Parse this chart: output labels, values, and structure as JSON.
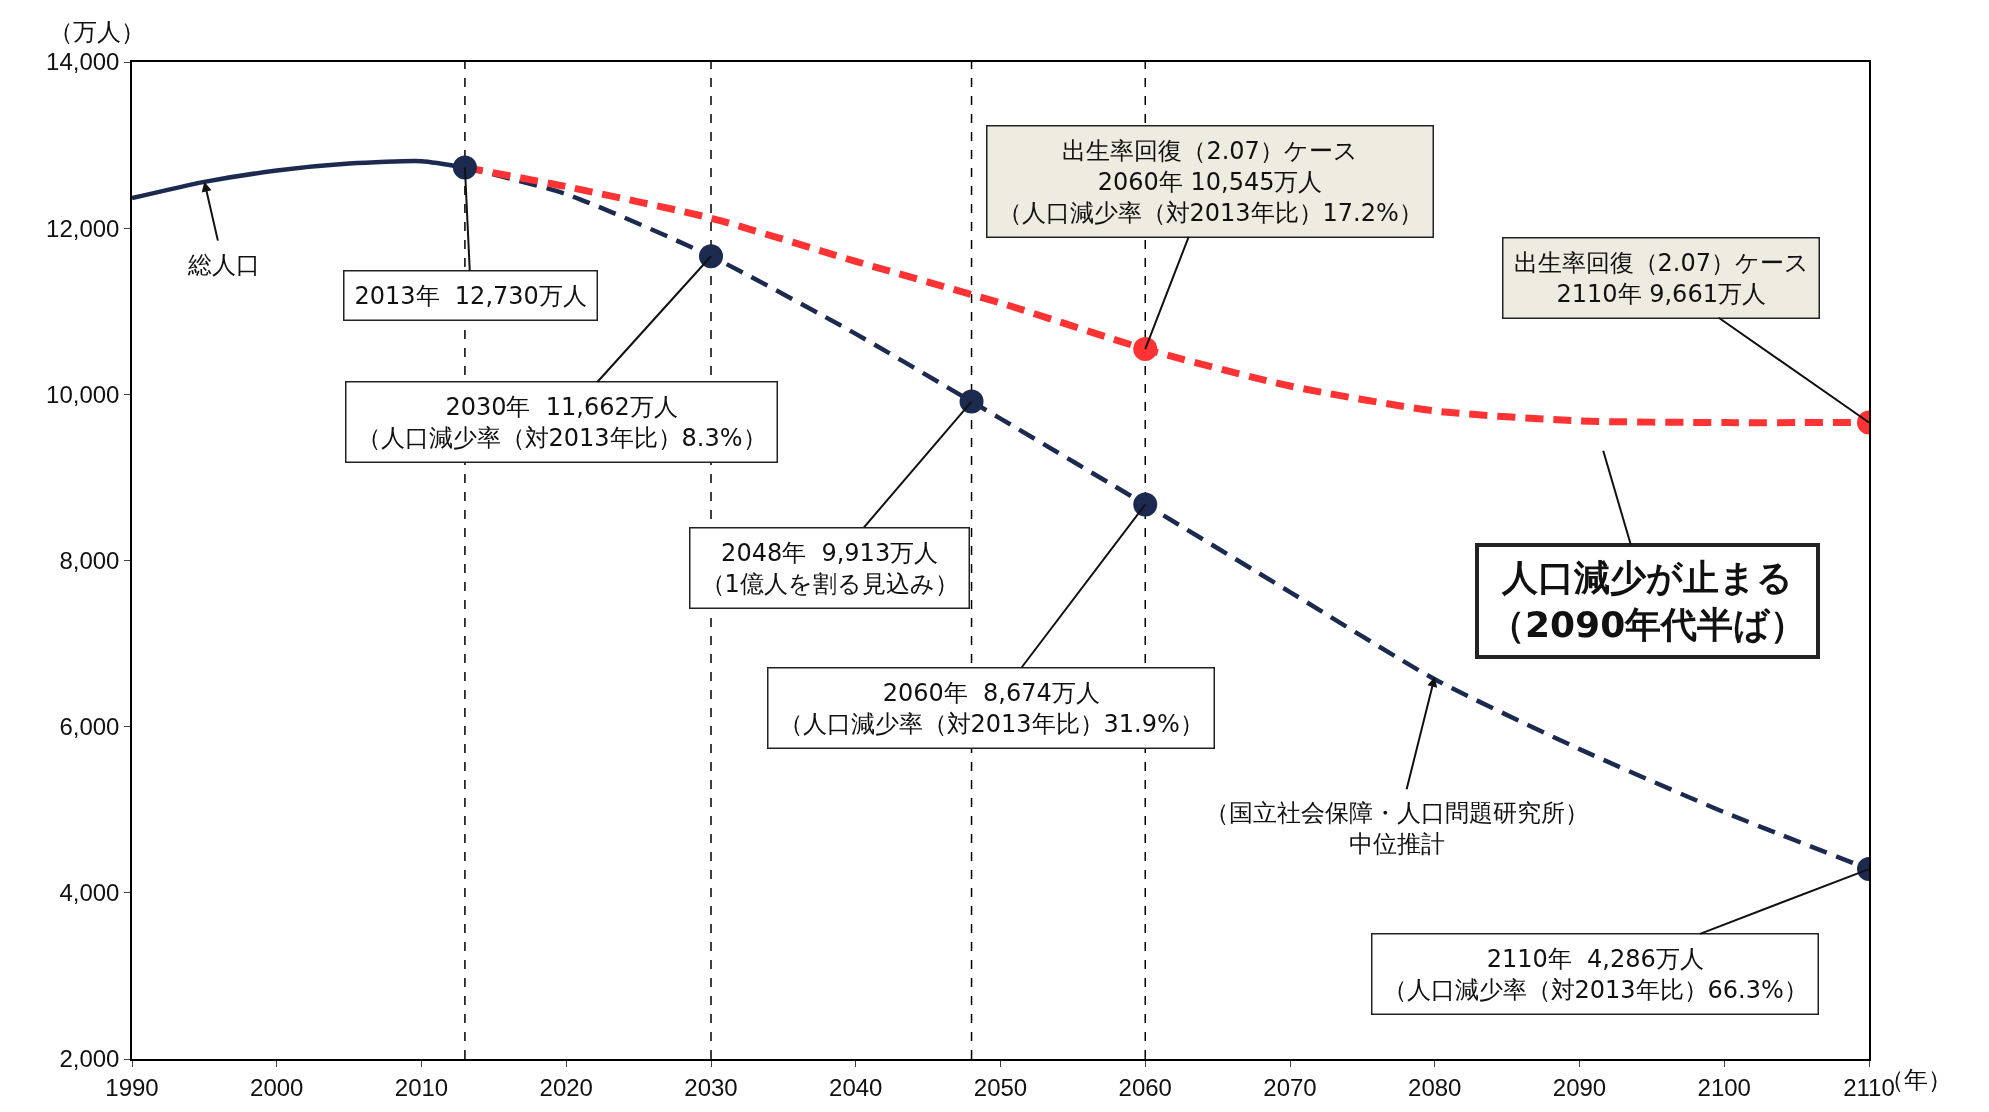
{
  "chart_data": {
    "type": "line",
    "xlabel": "（年）",
    "ylabel": "（万人）",
    "xlim": [
      1990,
      2110
    ],
    "xticks": [
      1990,
      2000,
      2010,
      2020,
      2030,
      2040,
      2050,
      2060,
      2070,
      2080,
      2090,
      2100,
      2110
    ],
    "ylim": [
      2000,
      14000
    ],
    "yticks": [
      {
        "value": 2000,
        "label": "2,000"
      },
      {
        "value": 4000,
        "label": "4,000"
      },
      {
        "value": 6000,
        "label": "6,000"
      },
      {
        "value": 8000,
        "label": "8,000"
      },
      {
        "value": 10000,
        "label": "10,000"
      },
      {
        "value": 12000,
        "label": "12,000"
      },
      {
        "value": 14000,
        "label": "14,000"
      }
    ],
    "grid": false,
    "ref_lines": [
      {
        "axis": "x",
        "value": 2013,
        "color": "#000000",
        "line_style": "dashed"
      },
      {
        "axis": "x",
        "value": 2030,
        "color": "#000000",
        "line_style": "dashed"
      },
      {
        "axis": "x",
        "value": 2048,
        "color": "#000000",
        "line_style": "dashed"
      },
      {
        "axis": "x",
        "value": 2060,
        "color": "#000000",
        "line_style": "dashed"
      }
    ],
    "series": [
      {
        "line_style": "solid",
        "color": "#1c2a4f",
        "x": [
          1990,
          1995,
          2000,
          2005,
          2010,
          2013
        ],
        "values": [
          12361,
          12557,
          12693,
          12777,
          12806,
          12730
        ]
      },
      {
        "line_style": "dashed",
        "color": "#1c2a4f",
        "x": [
          2013,
          2020,
          2030,
          2040,
          2048,
          2050,
          2060,
          2070,
          2080,
          2090,
          2100,
          2110
        ],
        "values": [
          12730,
          12410,
          11662,
          10728,
          9913,
          9708,
          8674,
          7620,
          6570,
          5730,
          4970,
          4286
        ]
      },
      {
        "line_style": "dashed",
        "color": "#ff3333",
        "x": [
          2013,
          2020,
          2030,
          2040,
          2050,
          2060,
          2070,
          2080,
          2090,
          2100,
          2110
        ],
        "values": [
          12730,
          12500,
          12120,
          11600,
          11100,
          10545,
          10100,
          9800,
          9680,
          9660,
          9661
        ]
      },
      {
        "type": "scatter",
        "marker": "circle",
        "color": "#1c2a4f",
        "x": [
          2013,
          2030,
          2048,
          2060,
          2110
        ],
        "values": [
          12730,
          11662,
          9913,
          8674,
          4286
        ]
      },
      {
        "type": "scatter",
        "marker": "circle",
        "color": "#ff3333",
        "x": [
          2060,
          2110
        ],
        "values": [
          10545,
          9661
        ]
      }
    ],
    "annotations": [
      {
        "text": "総人口",
        "x": 1995,
        "y": 12560
      },
      {
        "text": "2013年  12,730万人",
        "x": 2013,
        "y": 12730
      },
      {
        "text": "2030年  11,662万人（人口減少率（対2013年比）8.3%）",
        "x": 2030,
        "y": 11662
      },
      {
        "text": "2048年  9,913万人（1億人を割る見込み）",
        "x": 2048,
        "y": 9913
      },
      {
        "text": "2060年  8,674万人（人口減少率（対2013年比）31.9%）",
        "x": 2060,
        "y": 8674
      },
      {
        "text": "2110年  4,286万人（人口減少率（対2013年比）66.3%）",
        "x": 2110,
        "y": 4286
      },
      {
        "text": "出生率回復（2.07）ケース2060年 10,545万人（人口減少率（対2013年比）17.2%）",
        "x": 2060,
        "y": 10545
      },
      {
        "text": "出生率回復（2.07）ケース2110年 9,661万人",
        "x": 2110,
        "y": 9661
      },
      "人口減少が止まる（2090年代半ば）",
      {
        "text": "（国立社会保障・人口問題研究所）中位推計",
        "x": 2080,
        "y": 6600
      }
    ]
  }
}
